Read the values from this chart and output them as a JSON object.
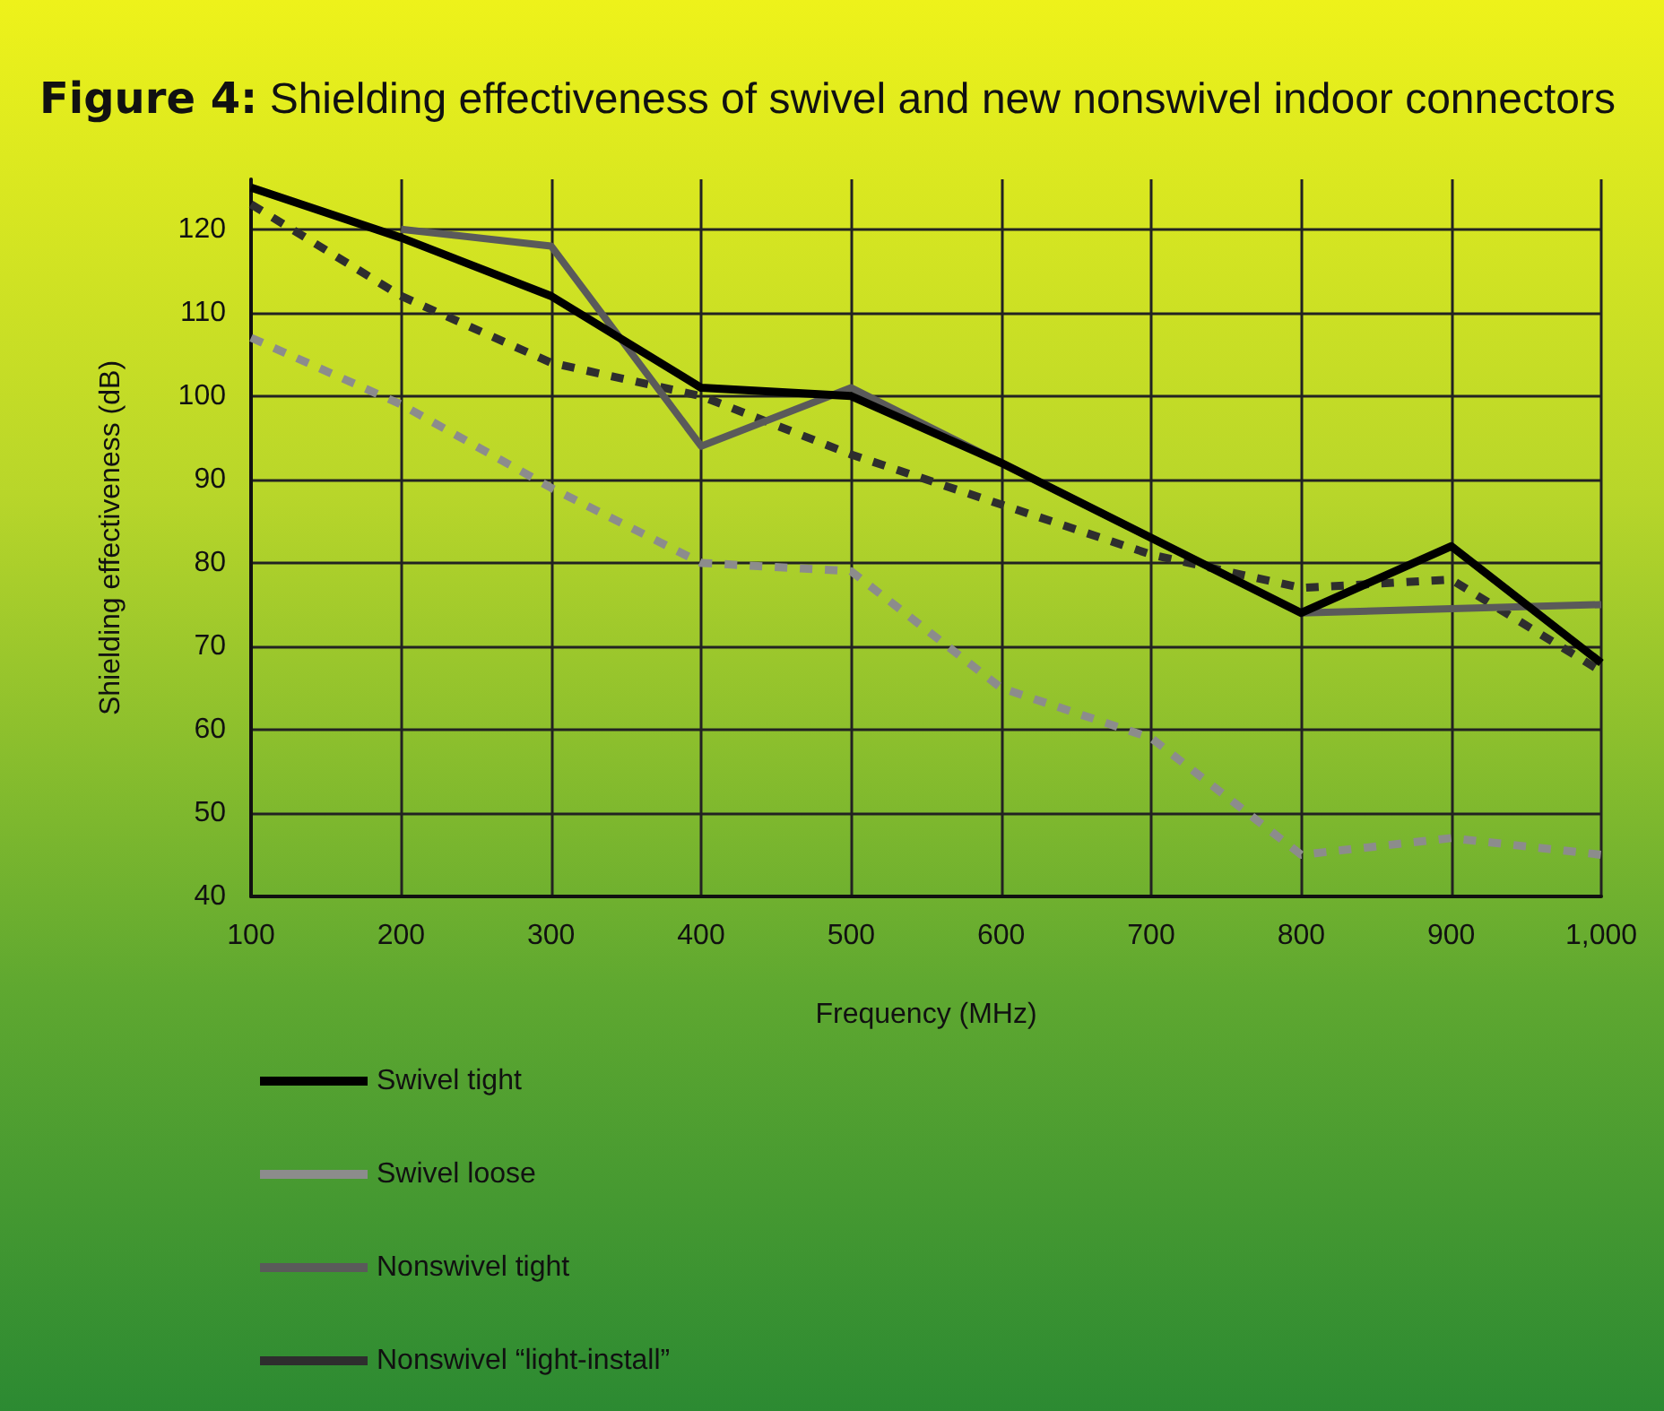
{
  "chart_data": {
    "type": "line",
    "title": "Figure 4: Shielding effectiveness of swivel and new nonswivel indoor connectors",
    "xlabel": "Frequency (MHz)",
    "ylabel": "Shielding effectiveness (dB)",
    "x": [
      100,
      200,
      300,
      400,
      500,
      600,
      700,
      800,
      900,
      1000
    ],
    "xlim": [
      100,
      1000
    ],
    "xticks": [
      100,
      200,
      300,
      400,
      500,
      600,
      700,
      800,
      900,
      {
        "value": 1000,
        "label": "1,000"
      }
    ],
    "ylim": [
      40,
      126
    ],
    "yticks": [
      40,
      50,
      60,
      70,
      80,
      90,
      100,
      110,
      120
    ],
    "grid": true,
    "legend": "bottom",
    "marker": "none",
    "series": [
      {
        "name": "Swivel tight",
        "color": "#000000",
        "line_style": "solid",
        "values": [
          125,
          119,
          112,
          101,
          100,
          92,
          83,
          74,
          82,
          68
        ]
      },
      {
        "name": "Swivel loose",
        "color": "#8c8c8c",
        "line_style": "dashed",
        "values": [
          107,
          99,
          89,
          80,
          79,
          65,
          59,
          45,
          47,
          45
        ]
      },
      {
        "name": "Nonswivel tight",
        "color": "#5a5a5a",
        "line_style": "solid",
        "values": [
          null,
          120,
          118,
          94,
          101,
          null,
          null,
          74,
          74.5,
          75
        ]
      },
      {
        "name": "Nonswivel “light-install”",
        "color": "#2e2e2e",
        "line_style": "dashed",
        "values": [
          123,
          112,
          104,
          100,
          93,
          87,
          81,
          77,
          78,
          67
        ]
      }
    ]
  }
}
